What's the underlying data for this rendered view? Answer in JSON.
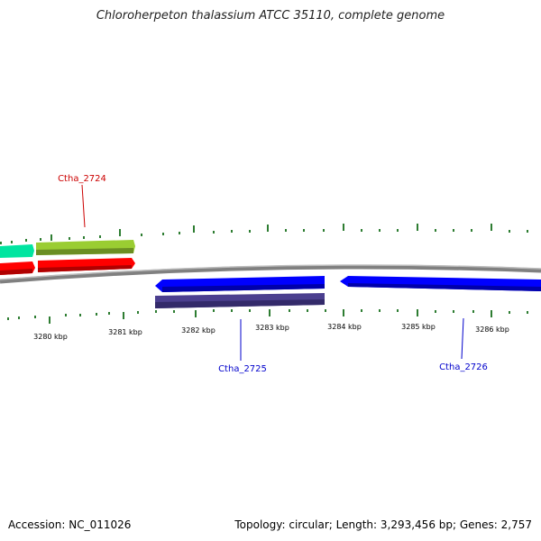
{
  "header": {
    "title": "Chloroherpeton thalassium ATCC 35110, complete genome"
  },
  "footer": {
    "accession": "Accession: NC_011026",
    "summary": "Topology: circular; Length: 3,293,456 bp; Genes: 2,757"
  },
  "scale": {
    "tick_labels": [
      "3280 kbp",
      "3281 kbp",
      "3282 kbp",
      "3283 kbp",
      "3284 kbp",
      "3285 kbp",
      "3286 kbp"
    ]
  },
  "genes": {
    "top_label": "Ctha_2724",
    "bottom_labels": [
      "Ctha_2725",
      "Ctha_2726"
    ]
  },
  "colors": {
    "backbone": "#808080",
    "tick": "#2e7d32",
    "forward_gene": "#ff0000",
    "forward_gene_alt": "#9acd32",
    "forward_gene_cyan": "#00e5a0",
    "reverse_gene": "#0000ff",
    "reverse_secondary": "#4b3f8f",
    "label_red": "#cc0000",
    "label_blue": "#0000cc"
  }
}
